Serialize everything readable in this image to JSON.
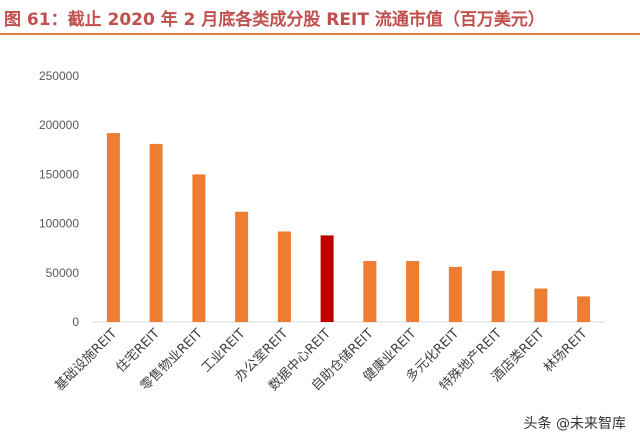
{
  "figure": {
    "title": "图 61：截止 2020 年 2 月底各类成分股 REIT 流通市值（百万美元）"
  },
  "chart_data": {
    "type": "bar",
    "title": "",
    "xlabel": "",
    "ylabel": "",
    "ylim": [
      0,
      250000
    ],
    "yticks": [
      "0",
      "50000",
      "100000",
      "150000",
      "200000",
      "250000"
    ],
    "categories": [
      "基础设施REIT",
      "住宅REIT",
      "零售物业REIT",
      "工业REIT",
      "办公室REIT",
      "数据中心REIT",
      "自助仓储REIT",
      "健康业REIT",
      "多元化REIT",
      "特殊地产REIT",
      "酒店类REIT",
      "林场REIT"
    ],
    "values": [
      192000,
      181000,
      150000,
      112000,
      92000,
      88000,
      62000,
      62000,
      56000,
      52000,
      34000,
      26000
    ],
    "colors": {
      "default": "#ed7d31",
      "highlight": "#c00000",
      "highlight_index": 5
    },
    "grid": false,
    "legend": "none"
  },
  "watermark": {
    "text": "头条 @未来智库"
  }
}
